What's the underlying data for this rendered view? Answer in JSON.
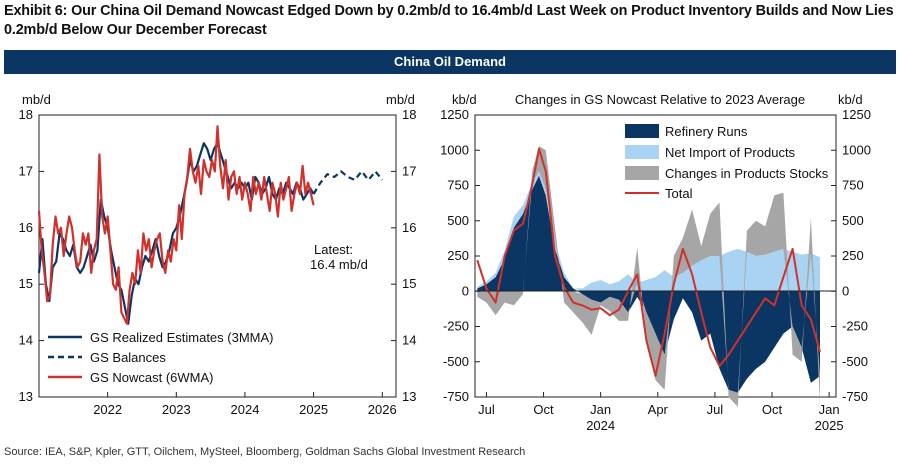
{
  "exhibit_title": "Exhibit 6: Our China Oil Demand Nowcast Edged Down by 0.2mb/d to 16.4mb/d Last Week on Product Inventory Builds and Now Lies 0.2mb/d Below Our December Forecast",
  "banner": "China Oil Demand",
  "source": "Source: IEA, S&P, Kpler, GTT, Oilchem, MySteel, Bloomberg, Goldman Sachs Global Investment Research",
  "colors": {
    "navy": "#0b3563",
    "light_blue": "#a9d3f2",
    "gray": "#a6a6a6",
    "red": "#d0312d"
  },
  "chart_data": [
    {
      "type": "line",
      "title": "",
      "ylabel_left": "mb/d",
      "ylabel_right": "mb/d",
      "ylim": [
        13,
        18
      ],
      "yticks": [
        13,
        14,
        15,
        16,
        17,
        18
      ],
      "xlim": [
        2021.0,
        2026.2
      ],
      "xticks": [
        2022,
        2023,
        2024,
        2025,
        2026
      ],
      "annotation": {
        "line1": "Latest:",
        "line2": "16.4 mb/d"
      },
      "legend_position": "bottom-left",
      "series": [
        {
          "name": "GS Realized Estimates (3MMA)",
          "style": "solid",
          "color": "#0b3563",
          "x": [
            2021.0,
            2021.05,
            2021.1,
            2021.15,
            2021.2,
            2021.25,
            2021.3,
            2021.35,
            2021.4,
            2021.45,
            2021.5,
            2021.55,
            2021.6,
            2021.65,
            2021.7,
            2021.75,
            2021.8,
            2021.85,
            2021.9,
            2021.95,
            2022.0,
            2022.05,
            2022.1,
            2022.15,
            2022.2,
            2022.25,
            2022.3,
            2022.35,
            2022.4,
            2022.45,
            2022.5,
            2022.55,
            2022.6,
            2022.65,
            2022.7,
            2022.75,
            2022.8,
            2022.85,
            2022.9,
            2022.95,
            2023.0,
            2023.05,
            2023.1,
            2023.15,
            2023.2,
            2023.25,
            2023.3,
            2023.35,
            2023.4,
            2023.45,
            2023.5,
            2023.55,
            2023.6,
            2023.65,
            2023.7,
            2023.75,
            2023.8,
            2023.85,
            2023.9,
            2023.95,
            2024.0,
            2024.05,
            2024.1,
            2024.15,
            2024.2,
            2024.25,
            2024.3,
            2024.35,
            2024.4,
            2024.45,
            2024.5,
            2024.55,
            2024.6,
            2024.65,
            2024.7,
            2024.75,
            2024.8,
            2024.85,
            2024.9,
            2024.95,
            2025.0
          ],
          "y": [
            15.2,
            15.8,
            15.0,
            14.7,
            15.3,
            15.4,
            15.9,
            15.8,
            15.6,
            15.5,
            15.7,
            15.3,
            15.2,
            15.3,
            15.5,
            15.7,
            15.4,
            15.6,
            16.5,
            16.2,
            16.0,
            15.6,
            15.3,
            15.0,
            14.9,
            14.6,
            14.3,
            14.8,
            15.1,
            15.0,
            15.3,
            15.5,
            15.4,
            15.6,
            15.8,
            15.5,
            15.3,
            15.4,
            15.6,
            15.9,
            16.0,
            16.2,
            16.5,
            16.8,
            17.2,
            17.0,
            17.1,
            17.3,
            17.5,
            17.4,
            17.2,
            17.4,
            17.5,
            17.3,
            17.1,
            16.9,
            16.7,
            16.8,
            16.7,
            16.8,
            16.7,
            16.8,
            16.5,
            16.9,
            16.8,
            16.6,
            16.7,
            16.9,
            16.6,
            16.5,
            16.7,
            16.6,
            16.8,
            16.7,
            16.6,
            16.8,
            16.7,
            16.5,
            16.6,
            16.7,
            16.6
          ]
        },
        {
          "name": "GS Balances",
          "style": "dashed",
          "color": "#0b3563",
          "x": [
            2025.0,
            2025.1,
            2025.2,
            2025.3,
            2025.4,
            2025.5,
            2025.6,
            2025.7,
            2025.8,
            2025.9,
            2026.0
          ],
          "y": [
            16.6,
            16.8,
            16.95,
            16.9,
            17.0,
            16.9,
            16.85,
            17.0,
            16.85,
            17.0,
            16.85
          ]
        },
        {
          "name": "GS Nowcast (6WMA)",
          "style": "solid",
          "color": "#d0312d",
          "x": [
            2021.0,
            2021.04,
            2021.08,
            2021.12,
            2021.16,
            2021.2,
            2021.24,
            2021.28,
            2021.32,
            2021.36,
            2021.4,
            2021.44,
            2021.48,
            2021.52,
            2021.56,
            2021.6,
            2021.64,
            2021.68,
            2021.72,
            2021.76,
            2021.8,
            2021.84,
            2021.88,
            2021.92,
            2021.96,
            2022.0,
            2022.04,
            2022.08,
            2022.12,
            2022.16,
            2022.2,
            2022.24,
            2022.28,
            2022.32,
            2022.36,
            2022.4,
            2022.44,
            2022.48,
            2022.52,
            2022.56,
            2022.6,
            2022.64,
            2022.68,
            2022.72,
            2022.76,
            2022.8,
            2022.84,
            2022.88,
            2022.92,
            2022.96,
            2023.0,
            2023.04,
            2023.08,
            2023.12,
            2023.16,
            2023.2,
            2023.24,
            2023.28,
            2023.32,
            2023.36,
            2023.4,
            2023.44,
            2023.48,
            2023.52,
            2023.56,
            2023.6,
            2023.64,
            2023.68,
            2023.72,
            2023.76,
            2023.8,
            2023.84,
            2023.88,
            2023.92,
            2023.96,
            2024.0,
            2024.04,
            2024.08,
            2024.12,
            2024.16,
            2024.2,
            2024.24,
            2024.28,
            2024.32,
            2024.36,
            2024.4,
            2024.44,
            2024.48,
            2024.52,
            2024.56,
            2024.6,
            2024.64,
            2024.68,
            2024.72,
            2024.76,
            2024.8,
            2024.84,
            2024.88,
            2024.92,
            2024.96,
            2025.0
          ],
          "y": [
            16.3,
            15.6,
            15.2,
            14.7,
            14.8,
            15.7,
            16.2,
            15.9,
            16.0,
            15.5,
            15.9,
            16.2,
            16.0,
            15.6,
            15.3,
            15.4,
            15.9,
            15.7,
            15.9,
            15.2,
            15.6,
            15.8,
            17.3,
            16.2,
            15.9,
            16.2,
            15.6,
            15.0,
            14.9,
            15.3,
            14.5,
            14.4,
            14.3,
            14.9,
            15.2,
            15.0,
            15.6,
            15.2,
            15.9,
            15.6,
            15.8,
            15.3,
            15.6,
            15.8,
            15.9,
            15.4,
            15.2,
            15.6,
            15.4,
            15.8,
            15.6,
            16.4,
            15.8,
            16.6,
            16.9,
            17.4,
            17.0,
            16.8,
            17.1,
            16.6,
            17.2,
            17.0,
            16.9,
            17.2,
            17.0,
            17.8,
            17.1,
            16.7,
            17.2,
            16.5,
            16.9,
            17.0,
            16.6,
            16.9,
            16.5,
            16.8,
            16.6,
            16.3,
            16.9,
            16.6,
            16.8,
            16.5,
            16.9,
            16.6,
            16.3,
            16.8,
            16.6,
            16.2,
            16.8,
            16.5,
            16.7,
            16.9,
            16.3,
            16.6,
            16.8,
            16.6,
            17.1,
            16.6,
            16.8,
            16.6,
            16.4
          ]
        }
      ]
    },
    {
      "type": "area",
      "title": "Changes in GS Nowcast Relative to 2023 Average",
      "ylabel_left": "kb/d",
      "ylabel_right": "kb/d",
      "ylim": [
        -750,
        1250
      ],
      "yticks": [
        -750,
        -500,
        -250,
        0,
        250,
        500,
        750,
        1000,
        1250
      ],
      "xlim": [
        2023.45,
        2025.03
      ],
      "xticks": [
        {
          "x": 2023.5,
          "label": "Jul",
          "sub": ""
        },
        {
          "x": 2023.75,
          "label": "Oct",
          "sub": ""
        },
        {
          "x": 2024.0,
          "label": "Jan",
          "sub": "2024"
        },
        {
          "x": 2024.25,
          "label": "Apr",
          "sub": ""
        },
        {
          "x": 2024.5,
          "label": "Jul",
          "sub": ""
        },
        {
          "x": 2024.75,
          "label": "Oct",
          "sub": ""
        },
        {
          "x": 2025.0,
          "label": "Jan",
          "sub": "2025"
        }
      ],
      "legend_position": "top-right",
      "x": [
        2023.46,
        2023.5,
        2023.54,
        2023.58,
        2023.62,
        2023.66,
        2023.7,
        2023.73,
        2023.76,
        2023.8,
        2023.84,
        2023.88,
        2023.92,
        2023.96,
        2024.0,
        2024.04,
        2024.08,
        2024.12,
        2024.16,
        2024.2,
        2024.24,
        2024.28,
        2024.32,
        2024.36,
        2024.4,
        2024.44,
        2024.48,
        2024.52,
        2024.56,
        2024.6,
        2024.64,
        2024.68,
        2024.72,
        2024.76,
        2024.8,
        2024.84,
        2024.88,
        2024.92,
        2024.96
      ],
      "series": [
        {
          "name": "Refinery Runs",
          "kind": "area",
          "color": "#0b3563",
          "values": [
            20,
            50,
            100,
            230,
            450,
            550,
            720,
            820,
            680,
            300,
            100,
            20,
            -20,
            -60,
            -80,
            -40,
            -60,
            -150,
            -40,
            -150,
            -300,
            -450,
            -200,
            -50,
            -150,
            -350,
            -300,
            -550,
            -700,
            -720,
            -620,
            -550,
            -500,
            -400,
            -300,
            -250,
            -400,
            -650,
            -600
          ]
        },
        {
          "name": "Net Import of Products",
          "kind": "area",
          "color": "#a9d3f2",
          "values": [
            10,
            20,
            30,
            60,
            80,
            60,
            50,
            30,
            40,
            50,
            30,
            0,
            20,
            60,
            80,
            50,
            70,
            120,
            60,
            80,
            100,
            150,
            100,
            130,
            180,
            220,
            250,
            250,
            280,
            300,
            280,
            250,
            260,
            280,
            300,
            280,
            260,
            270,
            240
          ]
        },
        {
          "name": "Changes in Products Stocks",
          "kind": "area",
          "color": "#a6a6a6",
          "values": [
            -40,
            -80,
            -170,
            -80,
            -100,
            -20,
            80,
            180,
            280,
            100,
            -80,
            -150,
            -200,
            -250,
            -20,
            -100,
            -150,
            -60,
            250,
            -200,
            -330,
            -250,
            150,
            250,
            400,
            100,
            300,
            380,
            -50,
            -100,
            150,
            250,
            200,
            400,
            400,
            -200,
            -100,
            250,
            -200
          ]
        },
        {
          "name": "Total",
          "kind": "line",
          "color": "#d0312d",
          "values": [
            220,
            20,
            -80,
            250,
            430,
            480,
            750,
            1010,
            850,
            250,
            30,
            -80,
            -100,
            -130,
            -120,
            -170,
            -130,
            0,
            120,
            -350,
            -600,
            -300,
            50,
            300,
            120,
            -150,
            -400,
            -530,
            -450,
            -350,
            -250,
            -150,
            -50,
            -100,
            100,
            300,
            -100,
            -200,
            -430
          ]
        }
      ]
    }
  ]
}
